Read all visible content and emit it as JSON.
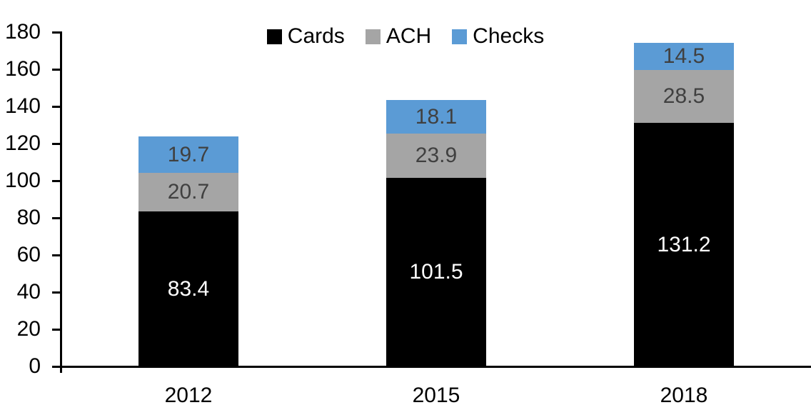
{
  "chart_data": {
    "type": "bar",
    "stacked": true,
    "title": "",
    "xlabel": "",
    "ylabel": "",
    "categories": [
      "2012",
      "2015",
      "2018"
    ],
    "series": [
      {
        "name": "Cards",
        "color": "#000000",
        "label_color": "#ffffff",
        "values": [
          83.4,
          101.5,
          131.2
        ]
      },
      {
        "name": "ACH",
        "color": "#a5a5a5",
        "label_color": "#404040",
        "values": [
          20.7,
          23.9,
          28.5
        ]
      },
      {
        "name": "Checks",
        "color": "#5b9bd5",
        "label_color": "#404040",
        "values": [
          19.7,
          18.1,
          14.5
        ]
      }
    ],
    "ylim": [
      0,
      180
    ],
    "yticks": [
      0,
      20,
      40,
      60,
      80,
      100,
      120,
      140,
      160,
      180
    ],
    "grid": false,
    "legend_position": "top",
    "axis_color": "#000000",
    "background_color": "#ffffff"
  }
}
